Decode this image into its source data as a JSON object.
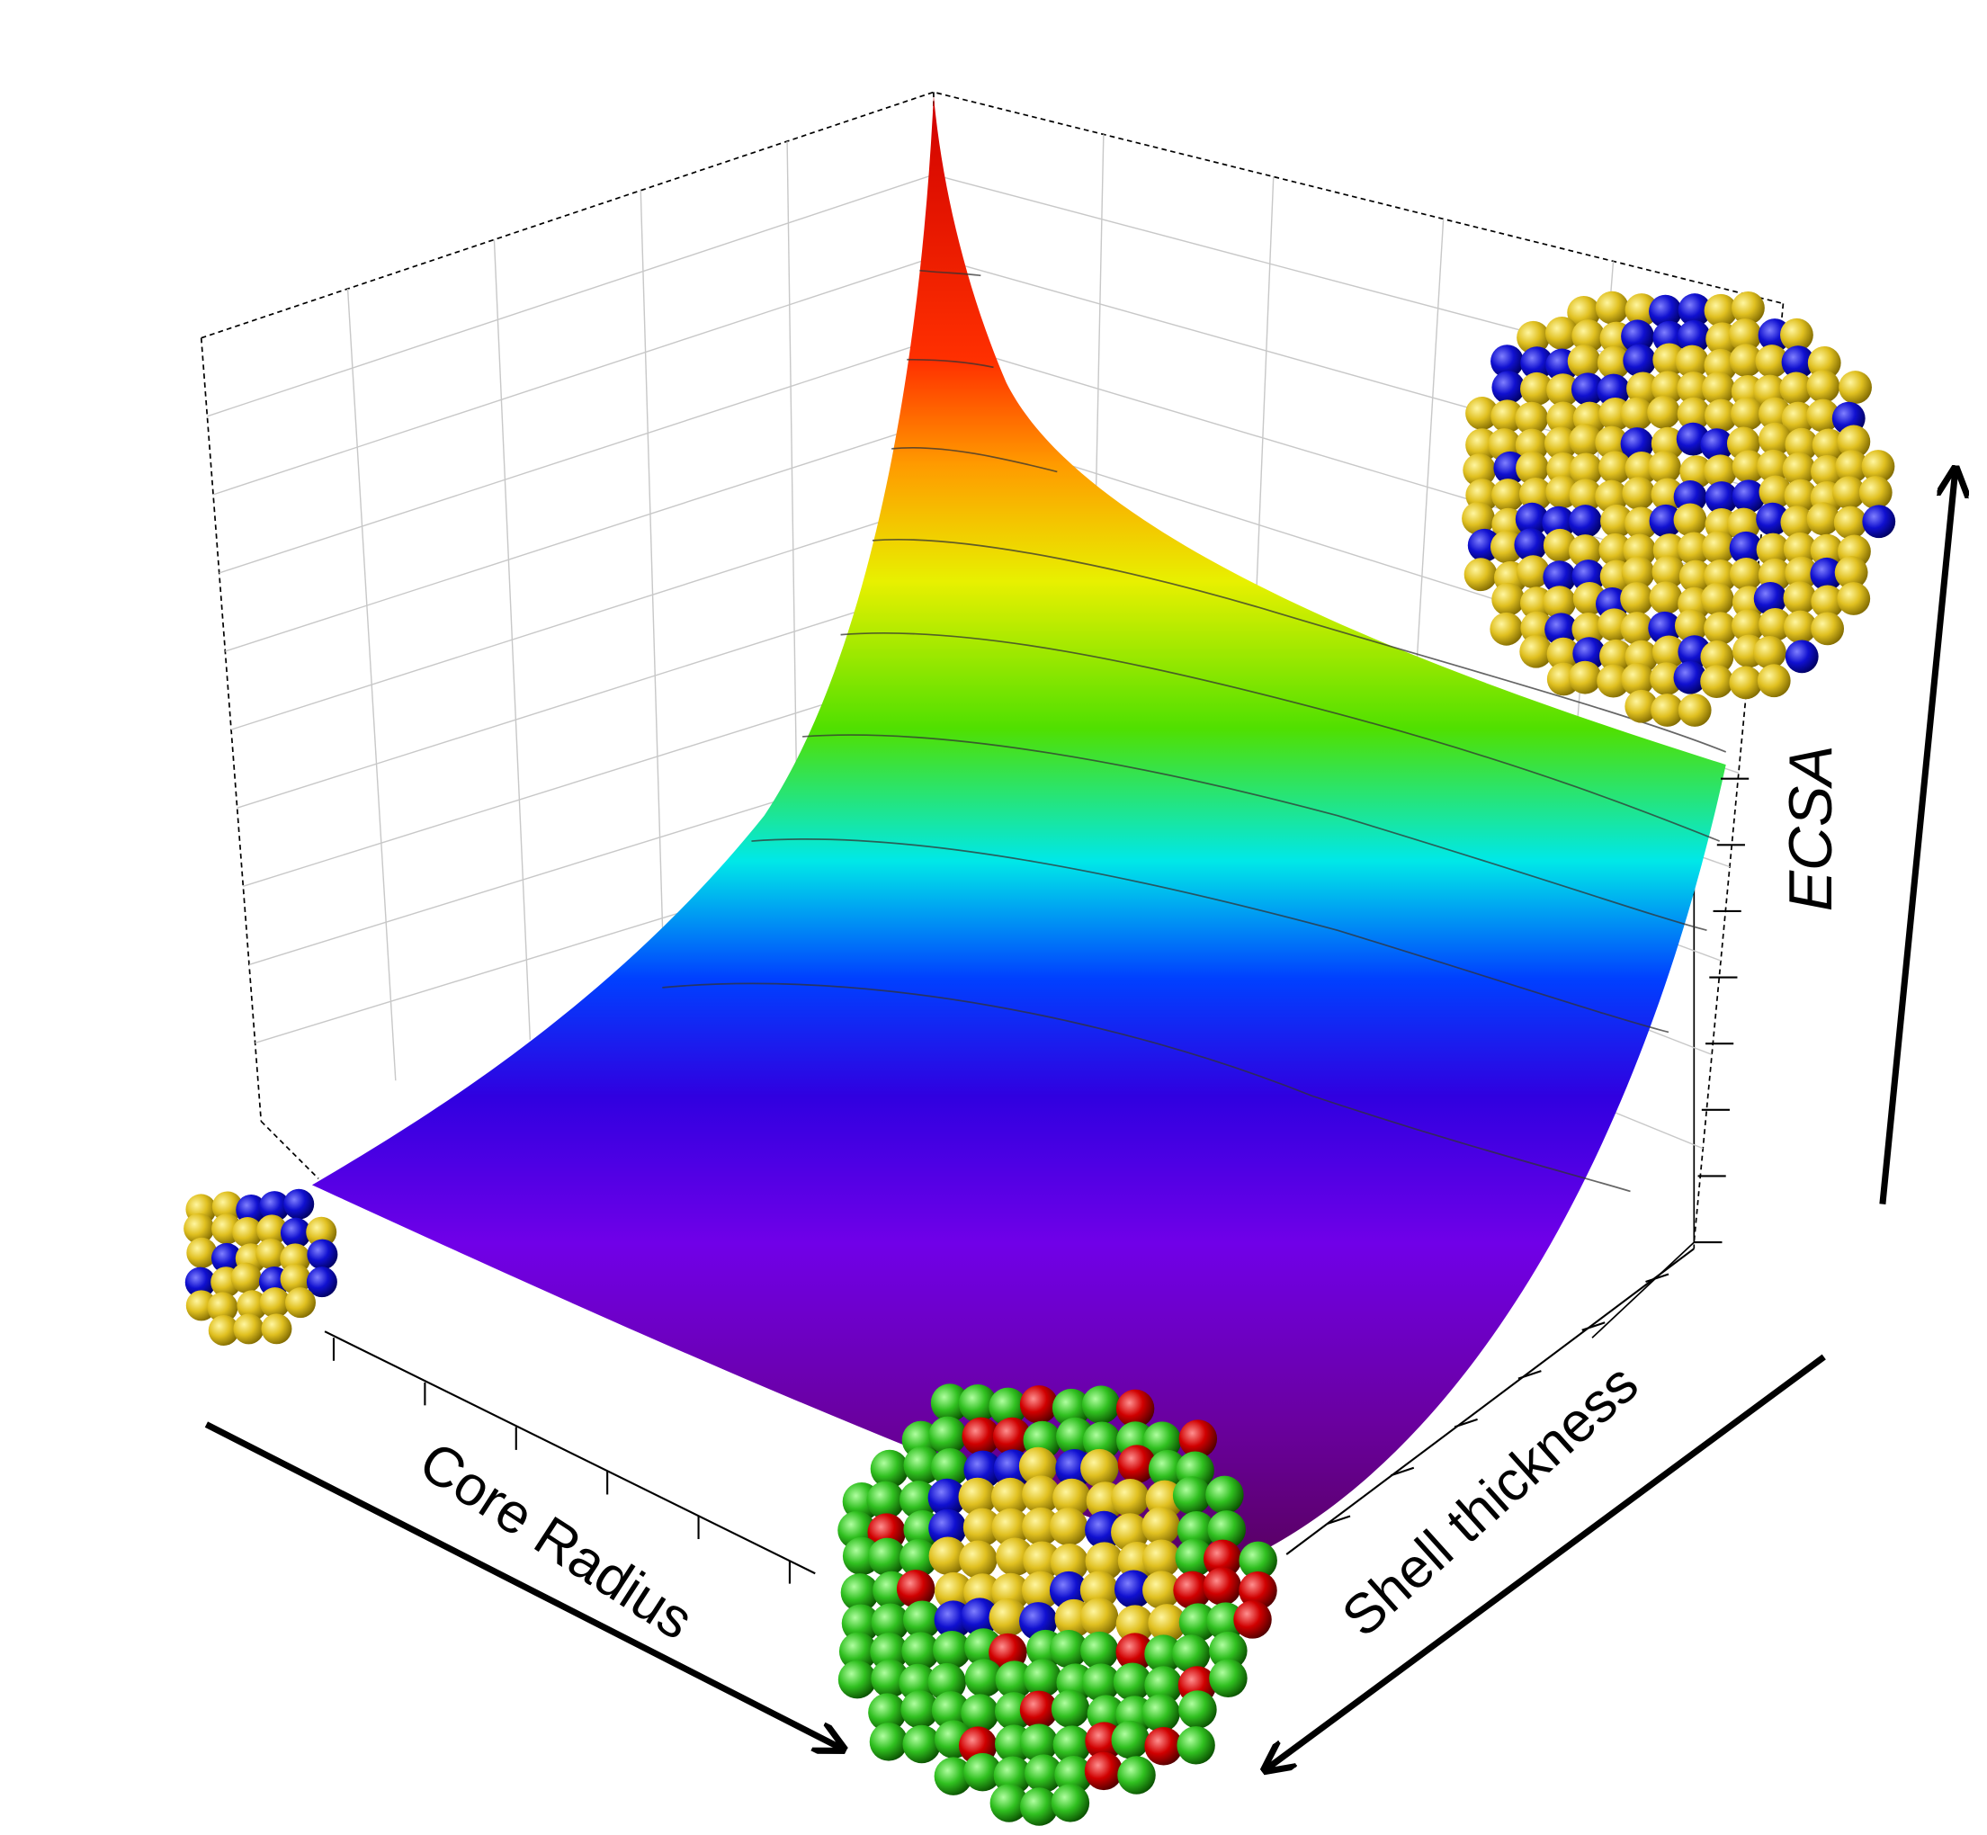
{
  "chart_data": {
    "type": "surface",
    "z_label": "ECSA",
    "x_label": "Core Radius",
    "y_label": "Shell thickness"
  }
}
